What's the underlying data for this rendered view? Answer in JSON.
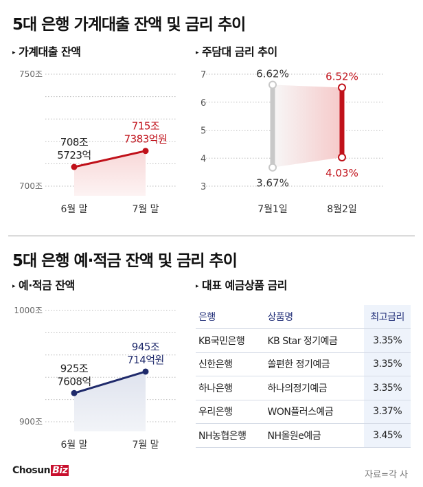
{
  "section1": {
    "title": "5대 은행 가계대출 잔액 및 금리 추이"
  },
  "section2": {
    "title": "5대 은행 예·적금 잔액 및 금리 추이"
  },
  "marker": "▸",
  "colors": {
    "red": "#c0111a",
    "navy": "#1f2a6b",
    "gray": "#c8c8c8"
  },
  "chart_data": [
    {
      "type": "line",
      "title": "가계대출 잔액",
      "categories": [
        "6월 말",
        "7월 말"
      ],
      "values": [
        708.5723,
        715.7383
      ],
      "data_labels": [
        [
          "708조",
          "5723억"
        ],
        [
          "715조",
          "7383억원"
        ]
      ],
      "yticks": [
        "750조",
        "700조"
      ],
      "ylim": [
        700,
        750
      ],
      "unit": "조원",
      "grid": true
    },
    {
      "type": "range",
      "title": "주담대 금리 추이",
      "categories": [
        "7월1일",
        "8월2일"
      ],
      "series": [
        {
          "name": "7월1일",
          "high": 6.62,
          "low": 3.67,
          "labels": [
            "6.62%",
            "3.67%"
          ]
        },
        {
          "name": "8월2일",
          "high": 6.52,
          "low": 4.03,
          "labels": [
            "6.52%",
            "4.03%"
          ]
        }
      ],
      "yticks": [
        "7",
        "6",
        "5",
        "4",
        "3"
      ],
      "ylim": [
        3,
        7
      ],
      "unit": "%",
      "grid": true
    },
    {
      "type": "line",
      "title": "예·적금 잔액",
      "categories": [
        "6월 말",
        "7월 말"
      ],
      "values": [
        925.7608,
        945.0714
      ],
      "data_labels": [
        [
          "925조",
          "7608억"
        ],
        [
          "945조",
          "714억원"
        ]
      ],
      "yticks": [
        "1000조",
        "900조"
      ],
      "ylim": [
        900,
        1000
      ],
      "unit": "조원",
      "grid": true
    },
    {
      "type": "table",
      "title": "대표 예금상품 금리",
      "columns": [
        "은행",
        "상품명",
        "최고금리"
      ],
      "rows": [
        [
          "KB국민은행",
          "KB Star 정기예금",
          "3.35%"
        ],
        [
          "신한은행",
          "쏠편한 정기예금",
          "3.35%"
        ],
        [
          "하나은행",
          "하나의정기예금",
          "3.35%"
        ],
        [
          "우리은행",
          "WON플러스예금",
          "3.37%"
        ],
        [
          "NH농협은행",
          "NH올원e예금",
          "3.45%"
        ]
      ]
    }
  ],
  "footer": {
    "logo_main": "Chosun",
    "logo_accent": "Biz",
    "source": "자료=각 사"
  }
}
